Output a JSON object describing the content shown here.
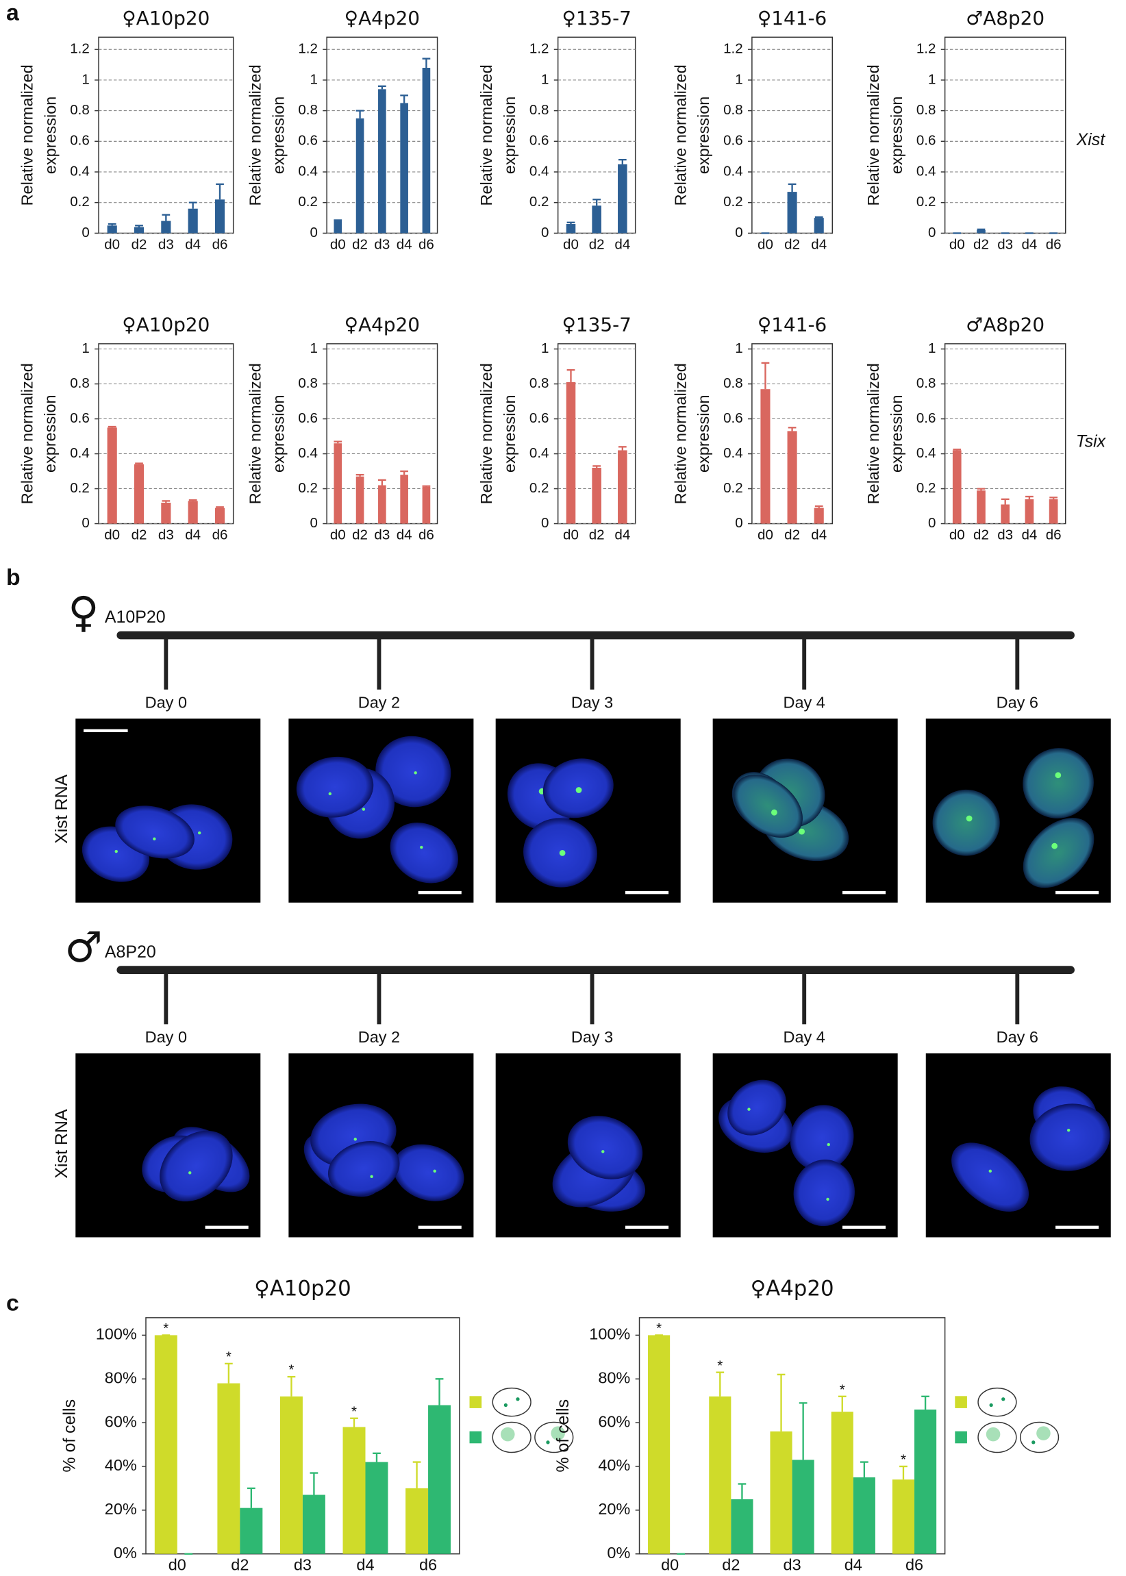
{
  "panel_labels": [
    "a",
    "b",
    "c"
  ],
  "row_labels": [
    "Xist",
    "Tsix"
  ],
  "panel_b": {
    "rows": [
      {
        "symbol": "♀",
        "name": "A10P20",
        "channel": "Xist RNA",
        "days": [
          "Day 0",
          "Day 2",
          "Day 3",
          "Day 4",
          "Day 6"
        ]
      },
      {
        "symbol": "♂",
        "name": "A8P20",
        "channel": "Xist RNA",
        "days": [
          "Day 0",
          "Day 2",
          "Day 3",
          "Day 4",
          "Day 6"
        ]
      }
    ]
  },
  "chart_data": [
    {
      "type": "bar",
      "title": "♀A10p20",
      "ylabel": [
        "Relative normalized",
        "expression"
      ],
      "categories": [
        "d0",
        "d2",
        "d3",
        "d4",
        "d6"
      ],
      "series": [
        {
          "color": "#2c5f94",
          "values": [
            0.05,
            0.04,
            0.08,
            0.16,
            0.22
          ],
          "errors": [
            0.01,
            0.01,
            0.04,
            0.04,
            0.1
          ]
        }
      ],
      "ylim": [
        0,
        1.28
      ],
      "yticks": [
        0,
        0.2,
        0.4,
        0.6,
        0.8,
        1,
        1.2
      ],
      "grid": true
    },
    {
      "type": "bar",
      "title": "♀A4p20",
      "ylabel": [
        "Relative normalized",
        "expression"
      ],
      "categories": [
        "d0",
        "d2",
        "d3",
        "d4",
        "d6"
      ],
      "series": [
        {
          "color": "#2c5f94",
          "values": [
            0.08,
            0.75,
            0.94,
            0.85,
            1.08
          ],
          "errors": [
            0.005,
            0.05,
            0.02,
            0.05,
            0.06
          ]
        }
      ],
      "ylim": [
        0,
        1.28
      ],
      "yticks": [
        0,
        0.2,
        0.4,
        0.6,
        0.8,
        1,
        1.2
      ],
      "grid": true
    },
    {
      "type": "bar",
      "title": "♀135-7",
      "ylabel": [
        "Relative normalized",
        "expression"
      ],
      "categories": [
        "d0",
        "d2",
        "d4"
      ],
      "series": [
        {
          "color": "#2c5f94",
          "values": [
            0.06,
            0.18,
            0.45
          ],
          "errors": [
            0.01,
            0.04,
            0.03
          ]
        }
      ],
      "ylim": [
        0,
        1.28
      ],
      "yticks": [
        0,
        0.2,
        0.4,
        0.6,
        0.8,
        1,
        1.2
      ],
      "grid": true
    },
    {
      "type": "bar",
      "title": "♀141-6",
      "ylabel": [
        "Relative normalized",
        "expression"
      ],
      "categories": [
        "d0",
        "d2",
        "d4"
      ],
      "series": [
        {
          "color": "#2c5f94",
          "values": [
            0,
            0.27,
            0.1
          ],
          "errors": [
            0,
            0.05,
            0.005
          ]
        }
      ],
      "ylim": [
        0,
        1.28
      ],
      "yticks": [
        0,
        0.2,
        0.4,
        0.6,
        0.8,
        1,
        1.2
      ],
      "grid": true
    },
    {
      "type": "bar",
      "title": "♂A8p20",
      "ylabel": [
        "Relative normalized",
        "expression"
      ],
      "categories": [
        "d0",
        "d2",
        "d3",
        "d4",
        "d6"
      ],
      "series": [
        {
          "color": "#2c5f94",
          "values": [
            0,
            0.02,
            0,
            0,
            0
          ],
          "errors": [
            0,
            0.005,
            0,
            0,
            0
          ]
        }
      ],
      "ylim": [
        0,
        1.28
      ],
      "yticks": [
        0,
        0.2,
        0.4,
        0.6,
        0.8,
        1,
        1.2
      ],
      "grid": true
    },
    {
      "type": "bar",
      "title": "♀A10p20",
      "ylabel": [
        "Relative normalized",
        "expression"
      ],
      "categories": [
        "d0",
        "d2",
        "d3",
        "d4",
        "d6"
      ],
      "series": [
        {
          "color": "#d9675f",
          "values": [
            0.55,
            0.34,
            0.12,
            0.13,
            0.09
          ],
          "errors": [
            0.005,
            0.005,
            0.01,
            0.005,
            0.005
          ]
        }
      ],
      "ylim": [
        0,
        1.03
      ],
      "yticks": [
        0,
        0.2,
        0.4,
        0.6,
        0.8,
        1
      ],
      "grid": true
    },
    {
      "type": "bar",
      "title": "♀A4p20",
      "ylabel": [
        "Relative normalized",
        "expression"
      ],
      "categories": [
        "d0",
        "d2",
        "d3",
        "d4",
        "d6"
      ],
      "series": [
        {
          "color": "#d9675f",
          "values": [
            0.46,
            0.27,
            0.22,
            0.28,
            0.21
          ],
          "errors": [
            0.01,
            0.01,
            0.03,
            0.02,
            0.005
          ]
        }
      ],
      "ylim": [
        0,
        1.03
      ],
      "yticks": [
        0,
        0.2,
        0.4,
        0.6,
        0.8,
        1
      ],
      "grid": true
    },
    {
      "type": "bar",
      "title": "♀135-7",
      "ylabel": [
        "Relative normalized",
        "expression"
      ],
      "categories": [
        "d0",
        "d2",
        "d4"
      ],
      "series": [
        {
          "color": "#d9675f",
          "values": [
            0.81,
            0.32,
            0.42
          ],
          "errors": [
            0.07,
            0.01,
            0.02
          ]
        }
      ],
      "ylim": [
        0,
        1.03
      ],
      "yticks": [
        0,
        0.2,
        0.4,
        0.6,
        0.8,
        1
      ],
      "grid": true
    },
    {
      "type": "bar",
      "title": "♀141-6",
      "ylabel": [
        "Relative normalized",
        "expression"
      ],
      "categories": [
        "d0",
        "d2",
        "d4"
      ],
      "series": [
        {
          "color": "#d9675f",
          "values": [
            0.77,
            0.53,
            0.09
          ],
          "errors": [
            0.15,
            0.02,
            0.01
          ]
        }
      ],
      "ylim": [
        0,
        1.03
      ],
      "yticks": [
        0,
        0.2,
        0.4,
        0.6,
        0.8,
        1
      ],
      "grid": true
    },
    {
      "type": "bar",
      "title": "♂A8p20",
      "ylabel": [
        "Relative normalized",
        "expression"
      ],
      "categories": [
        "d0",
        "d2",
        "d3",
        "d4",
        "d6"
      ],
      "series": [
        {
          "color": "#d9675f",
          "values": [
            0.42,
            0.19,
            0.11,
            0.14,
            0.14
          ],
          "errors": [
            0.005,
            0.01,
            0.03,
            0.015,
            0.01
          ]
        }
      ],
      "ylim": [
        0,
        1.03
      ],
      "yticks": [
        0,
        0.2,
        0.4,
        0.6,
        0.8,
        1
      ],
      "grid": true
    },
    {
      "type": "bar",
      "title": "♀A10p20",
      "ylabel": [
        "% of cells"
      ],
      "categories": [
        "d0",
        "d2",
        "d3",
        "d4",
        "d6"
      ],
      "series": [
        {
          "color": "#cfdb2a",
          "values": [
            100,
            78,
            72,
            58,
            30
          ],
          "errors": [
            0,
            9,
            9,
            4,
            12
          ],
          "stars": [
            "*",
            "*",
            "*",
            "*",
            null
          ]
        },
        {
          "color": "#2eb872",
          "values": [
            0,
            21,
            27,
            42,
            68
          ],
          "errors": [
            0,
            9,
            10,
            4,
            12
          ]
        }
      ],
      "ylim": [
        0,
        108
      ],
      "yticks": [
        {
          "value": 0,
          "label": "0%"
        },
        {
          "value": 20,
          "label": "20%"
        },
        {
          "value": 40,
          "label": "40%"
        },
        {
          "value": 60,
          "label": "60%"
        },
        {
          "value": 80,
          "label": "80%"
        },
        {
          "value": 100,
          "label": "100%"
        }
      ],
      "grid": false
    },
    {
      "type": "bar",
      "title": "♀A4p20",
      "ylabel": [
        "% of cells"
      ],
      "categories": [
        "d0",
        "d2",
        "d3",
        "d4",
        "d6"
      ],
      "series": [
        {
          "color": "#cfdb2a",
          "values": [
            100,
            72,
            56,
            65,
            34
          ],
          "errors": [
            0,
            11,
            26,
            7,
            6
          ],
          "stars": [
            "*",
            "*",
            null,
            "*",
            "*"
          ]
        },
        {
          "color": "#2eb872",
          "values": [
            0,
            25,
            43,
            35,
            66
          ],
          "errors": [
            0,
            7,
            26,
            7,
            6
          ]
        }
      ],
      "ylim": [
        0,
        108
      ],
      "yticks": [
        {
          "value": 0,
          "label": "0%"
        },
        {
          "value": 20,
          "label": "20%"
        },
        {
          "value": 40,
          "label": "40%"
        },
        {
          "value": 60,
          "label": "60%"
        },
        {
          "value": 80,
          "label": "80%"
        },
        {
          "value": 100,
          "label": "100%"
        }
      ],
      "grid": false
    }
  ]
}
